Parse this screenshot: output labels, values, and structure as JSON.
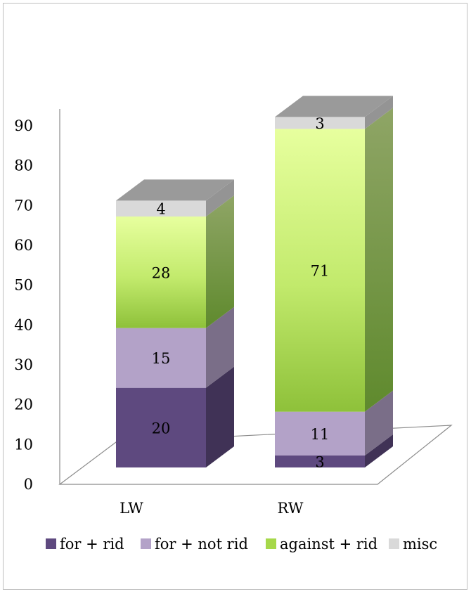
{
  "chart_data": {
    "type": "bar",
    "stacked": true,
    "three_d": true,
    "categories": [
      "LW",
      "RW"
    ],
    "series": [
      {
        "name": "for + rid",
        "values": [
          20,
          3
        ],
        "color": "#5e497f"
      },
      {
        "name": "for + not rid",
        "values": [
          15,
          11
        ],
        "color": "#b3a2c8"
      },
      {
        "name": "against + rid",
        "values": [
          28,
          71
        ],
        "color": "#9ccc3c"
      },
      {
        "name": "misc",
        "values": [
          4,
          3
        ],
        "color": "#d9d9d9"
      }
    ],
    "data_labels": [
      [
        "20",
        "3"
      ],
      [
        "15",
        "11"
      ],
      [
        "28",
        "71"
      ],
      [
        "4",
        "3"
      ]
    ],
    "y_ticks": [
      "0",
      "10",
      "20",
      "30",
      "40",
      "50",
      "60",
      "70",
      "80",
      "90"
    ],
    "ylim": [
      0,
      90
    ],
    "grid": false,
    "legend_position": "bottom"
  }
}
